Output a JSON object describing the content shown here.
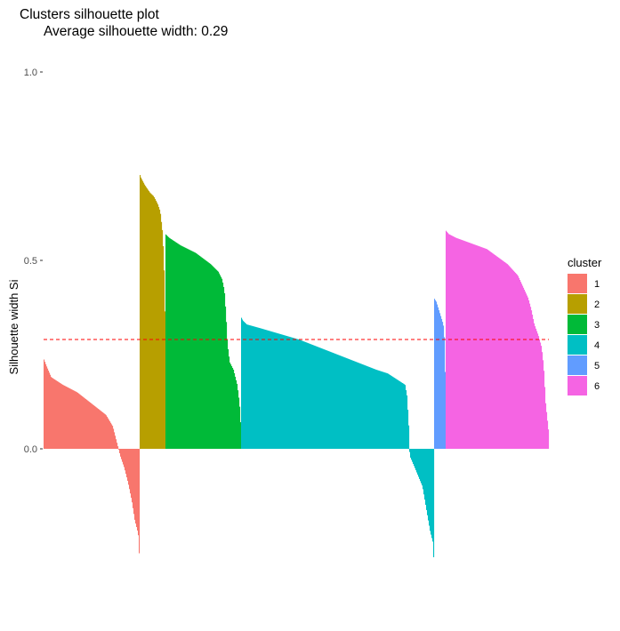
{
  "chart_data": {
    "type": "bar",
    "title": "Clusters silhouette plot",
    "subtitle": " Average silhouette width: 0.29",
    "ylabel": "Silhouette width Si",
    "xlabel": "",
    "ylim": [
      -0.36,
      1.0
    ],
    "yticks": [
      0.0,
      0.5,
      1.0
    ],
    "yticklabels": [
      "0.0",
      "0.5",
      "1.0"
    ],
    "grid": false,
    "reference_line": {
      "value": 0.29,
      "color": "#ff0000",
      "style": "dashed"
    },
    "legend": {
      "title": "cluster",
      "position": "right"
    },
    "series": [
      {
        "name": "1",
        "color": "#f8766d",
        "profile": [
          [
            0,
            0.24
          ],
          [
            0.03,
            0.22
          ],
          [
            0.08,
            0.19
          ],
          [
            0.2,
            0.17
          ],
          [
            0.35,
            0.15
          ],
          [
            0.45,
            0.13
          ],
          [
            0.55,
            0.11
          ],
          [
            0.65,
            0.09
          ],
          [
            0.72,
            0.06
          ],
          [
            0.75,
            0.03
          ],
          [
            0.78,
            0.0
          ],
          [
            0.8,
            -0.02
          ],
          [
            0.84,
            -0.05
          ],
          [
            0.88,
            -0.09
          ],
          [
            0.92,
            -0.14
          ],
          [
            0.95,
            -0.19
          ],
          [
            0.98,
            -0.22
          ],
          [
            0.993,
            -0.24
          ],
          [
            1.0,
            -0.35
          ]
        ]
      },
      {
        "name": "2",
        "color": "#b79f00",
        "profile": [
          [
            0,
            0.73
          ],
          [
            0.05,
            0.72
          ],
          [
            0.2,
            0.7
          ],
          [
            0.4,
            0.68
          ],
          [
            0.55,
            0.67
          ],
          [
            0.7,
            0.65
          ],
          [
            0.8,
            0.63
          ],
          [
            0.88,
            0.58
          ],
          [
            0.92,
            0.53
          ],
          [
            0.96,
            0.45
          ],
          [
            1.0,
            0.3
          ]
        ]
      },
      {
        "name": "3",
        "color": "#00ba38",
        "profile": [
          [
            0,
            0.57
          ],
          [
            0.05,
            0.56
          ],
          [
            0.2,
            0.54
          ],
          [
            0.4,
            0.52
          ],
          [
            0.6,
            0.49
          ],
          [
            0.7,
            0.47
          ],
          [
            0.75,
            0.45
          ],
          [
            0.78,
            0.42
          ],
          [
            0.8,
            0.36
          ],
          [
            0.82,
            0.28
          ],
          [
            0.85,
            0.23
          ],
          [
            0.9,
            0.21
          ],
          [
            0.95,
            0.17
          ],
          [
            0.98,
            0.12
          ],
          [
            1.0,
            0.05
          ]
        ]
      },
      {
        "name": "4",
        "color": "#00bfc4",
        "profile": [
          [
            0,
            0.35
          ],
          [
            0.01,
            0.34
          ],
          [
            0.03,
            0.33
          ],
          [
            0.1,
            0.32
          ],
          [
            0.2,
            0.305
          ],
          [
            0.3,
            0.29
          ],
          [
            0.4,
            0.27
          ],
          [
            0.5,
            0.25
          ],
          [
            0.6,
            0.23
          ],
          [
            0.7,
            0.21
          ],
          [
            0.76,
            0.2
          ],
          [
            0.82,
            0.18
          ],
          [
            0.85,
            0.17
          ],
          [
            0.86,
            0.14
          ],
          [
            0.87,
            0.05
          ],
          [
            0.872,
            0.0
          ],
          [
            0.875,
            -0.02
          ],
          [
            0.9,
            -0.05
          ],
          [
            0.94,
            -0.1
          ],
          [
            0.96,
            -0.16
          ],
          [
            0.98,
            -0.22
          ],
          [
            0.995,
            -0.25
          ],
          [
            1.0,
            -0.32
          ]
        ]
      },
      {
        "name": "5",
        "color": "#619cff",
        "profile": [
          [
            0,
            0.4
          ],
          [
            0.2,
            0.39
          ],
          [
            0.4,
            0.37
          ],
          [
            0.6,
            0.35
          ],
          [
            0.8,
            0.33
          ],
          [
            0.9,
            0.29
          ],
          [
            1.0,
            0.15
          ]
        ]
      },
      {
        "name": "6",
        "color": "#f564e3",
        "profile": [
          [
            0,
            0.58
          ],
          [
            0.03,
            0.57
          ],
          [
            0.1,
            0.56
          ],
          [
            0.2,
            0.55
          ],
          [
            0.3,
            0.54
          ],
          [
            0.4,
            0.53
          ],
          [
            0.5,
            0.51
          ],
          [
            0.6,
            0.49
          ],
          [
            0.65,
            0.475
          ],
          [
            0.7,
            0.46
          ],
          [
            0.75,
            0.43
          ],
          [
            0.8,
            0.4
          ],
          [
            0.83,
            0.37
          ],
          [
            0.86,
            0.33
          ],
          [
            0.9,
            0.3
          ],
          [
            0.93,
            0.27
          ],
          [
            0.95,
            0.22
          ],
          [
            0.97,
            0.12
          ],
          [
            1.0,
            0.04
          ]
        ]
      }
    ]
  }
}
